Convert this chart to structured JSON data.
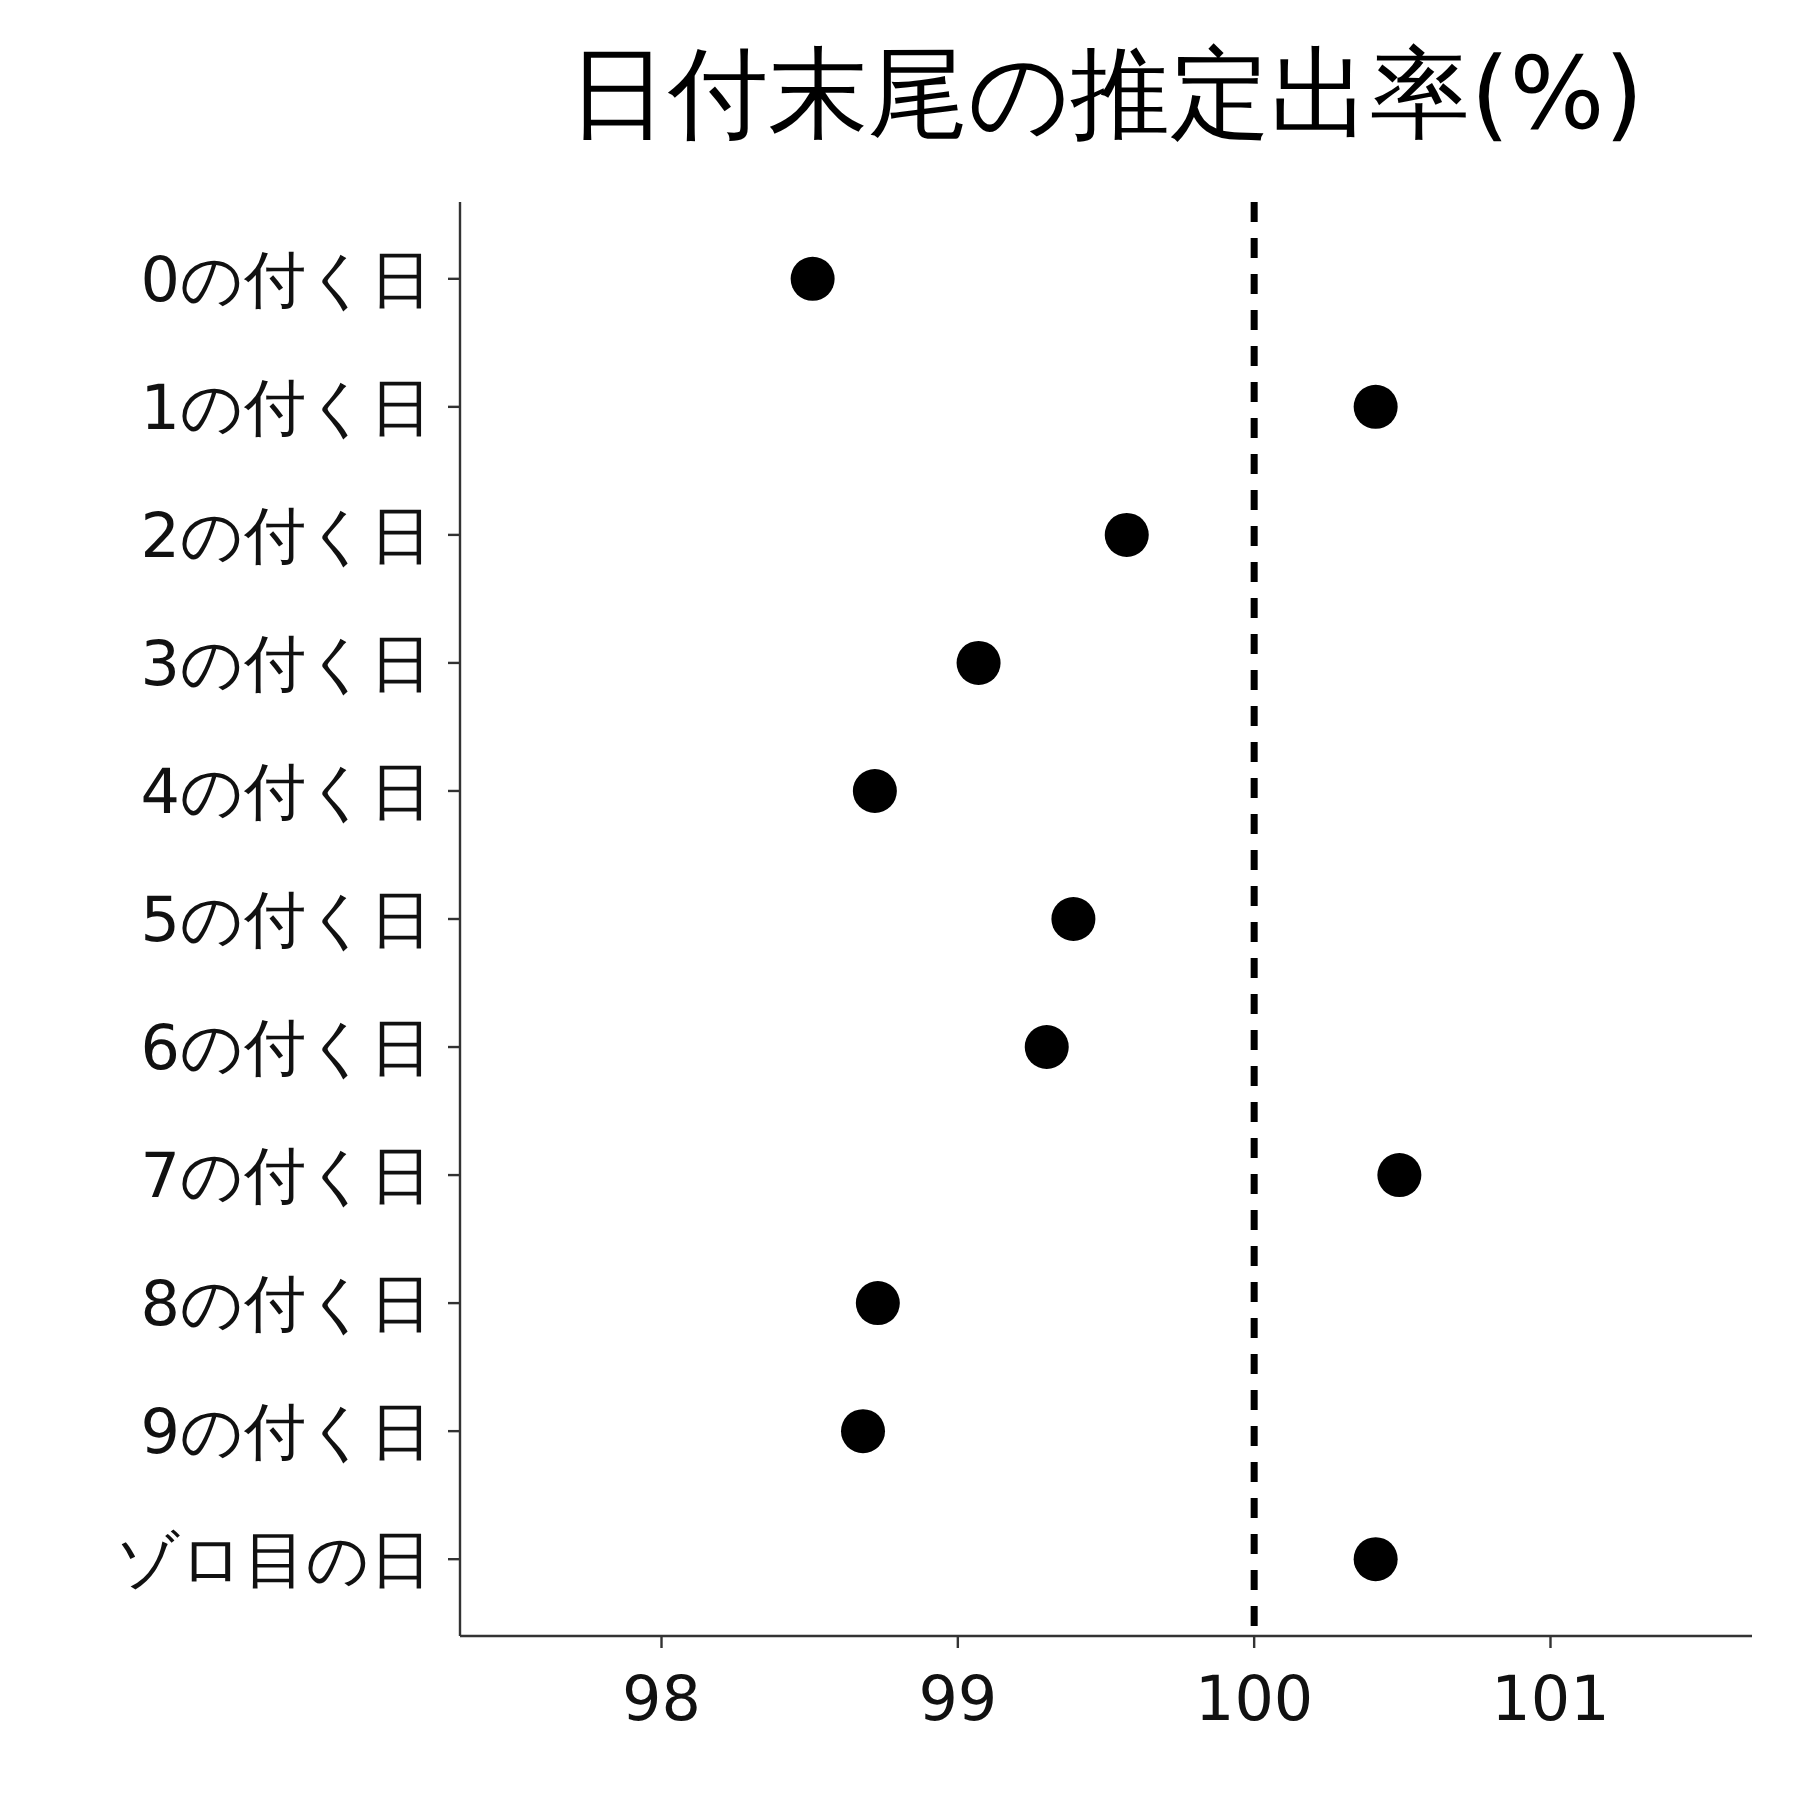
{
  "chart_data": {
    "type": "scatter",
    "orientation": "horizontal",
    "title": "日付末尾の推定出率(%)",
    "categories": [
      "0の付く日",
      "1の付く日",
      "2の付く日",
      "3の付く日",
      "4の付く日",
      "5の付く日",
      "6の付く日",
      "7の付く日",
      "8の付く日",
      "9の付く日",
      "ゾロ目の日"
    ],
    "values": [
      98.51,
      100.41,
      99.57,
      99.07,
      98.72,
      99.39,
      99.3,
      100.49,
      98.73,
      98.68,
      100.41
    ],
    "color": "#000000",
    "marker": "circle",
    "xlim": [
      97.32,
      101.68
    ],
    "xticks": [
      98,
      99,
      100,
      101
    ],
    "ref_lines": [
      {
        "axis": "x",
        "value": 100,
        "label": null,
        "color": "#000000",
        "line_style": "dashed"
      }
    ]
  }
}
